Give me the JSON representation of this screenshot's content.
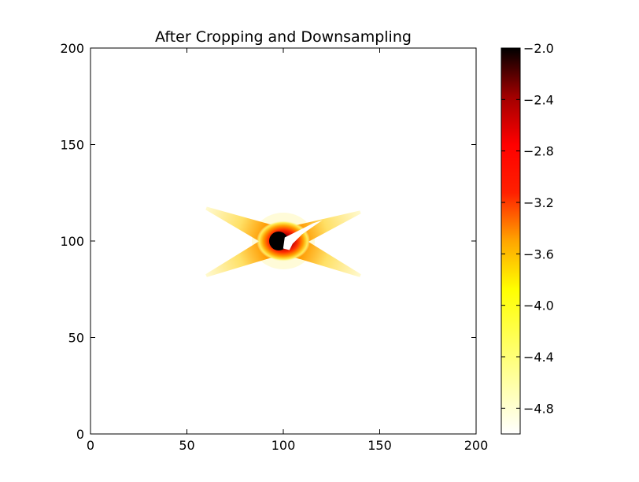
{
  "chart_data": {
    "type": "heatmap",
    "title": "After Cropping and Downsampling",
    "xlabel": "",
    "ylabel": "",
    "xlim": [
      0,
      200
    ],
    "ylim": [
      0,
      200
    ],
    "x_ticks": [
      0,
      50,
      100,
      150,
      200
    ],
    "y_ticks": [
      0,
      50,
      100,
      150,
      200
    ],
    "x_tick_labels": [
      "0",
      "50",
      "100",
      "150",
      "200"
    ],
    "y_tick_labels": [
      "0",
      "50",
      "100",
      "150",
      "200"
    ],
    "colormap": "hot_r",
    "color_range": [
      -5.0,
      -2.0
    ],
    "colorbar_ticks": [
      -2.0,
      -2.4,
      -2.8,
      -3.2,
      -3.6,
      -4.0,
      -4.4,
      -4.8
    ],
    "colorbar_tick_labels": [
      "−2.0",
      "−2.4",
      "−2.8",
      "−3.2",
      "−3.6",
      "−4.0",
      "−4.4",
      "−4.8"
    ],
    "feature": {
      "center": [
        100,
        100
      ],
      "core_value": -2.0,
      "edge_value": -4.9,
      "arm_endpoints": [
        [
          60,
          117
        ],
        [
          140,
          115
        ],
        [
          60,
          82
        ],
        [
          140,
          82
        ]
      ],
      "blank_region_center": [
        104,
        101
      ]
    }
  }
}
